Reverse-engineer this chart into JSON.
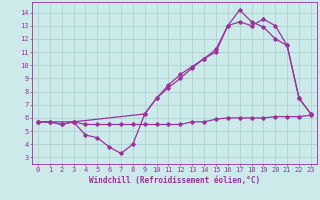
{
  "title": "",
  "xlabel": "Windchill (Refroidissement éolien,°C)",
  "ylabel": "",
  "bg_color": "#cceaea",
  "grid_color": "#aacccc",
  "line_color": "#993399",
  "xlim": [
    -0.5,
    23.5
  ],
  "ylim": [
    2.5,
    14.8
  ],
  "xticks": [
    0,
    1,
    2,
    3,
    4,
    5,
    6,
    7,
    8,
    9,
    10,
    11,
    12,
    13,
    14,
    15,
    16,
    17,
    18,
    19,
    20,
    21,
    22,
    23
  ],
  "yticks": [
    3,
    4,
    5,
    6,
    7,
    8,
    9,
    10,
    11,
    12,
    13,
    14
  ],
  "line1_x": [
    0,
    1,
    2,
    3,
    4,
    5,
    6,
    7,
    8,
    9,
    10,
    11,
    12,
    13,
    14,
    15,
    16,
    17,
    18,
    19,
    20,
    21,
    22,
    23
  ],
  "line1_y": [
    5.7,
    5.7,
    5.5,
    5.7,
    5.5,
    5.5,
    5.5,
    5.5,
    5.5,
    5.5,
    5.5,
    5.5,
    5.5,
    5.7,
    5.7,
    5.9,
    6.0,
    6.0,
    6.0,
    6.0,
    6.1,
    6.1,
    6.1,
    6.2
  ],
  "line2_x": [
    0,
    1,
    2,
    3,
    4,
    5,
    6,
    7,
    8,
    9,
    10,
    11,
    12,
    13,
    14,
    15,
    16,
    17,
    18,
    19,
    20,
    21,
    22,
    23
  ],
  "line2_y": [
    5.7,
    5.7,
    5.5,
    5.7,
    4.7,
    4.5,
    3.8,
    3.3,
    4.0,
    6.3,
    7.5,
    8.5,
    9.3,
    9.9,
    10.5,
    11.0,
    13.0,
    14.2,
    13.3,
    12.9,
    12.0,
    11.5,
    7.5,
    6.3
  ],
  "line3_x": [
    0,
    3,
    9,
    10,
    11,
    12,
    13,
    14,
    15,
    16,
    17,
    18,
    19,
    20,
    21,
    22,
    23
  ],
  "line3_y": [
    5.7,
    5.7,
    6.3,
    7.5,
    8.3,
    9.0,
    9.8,
    10.5,
    11.2,
    13.0,
    13.3,
    13.0,
    13.5,
    13.0,
    11.5,
    7.5,
    6.3
  ],
  "axis_label_fontsize": 5.5,
  "tick_fontsize": 5.0,
  "linewidth": 0.9,
  "marker": "D",
  "markersize": 1.8
}
